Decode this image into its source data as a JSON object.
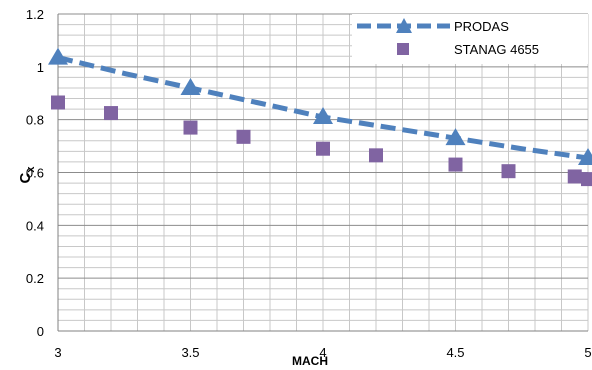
{
  "chart_data": {
    "type": "scatter",
    "title": "",
    "xlabel": "MACH",
    "ylabel": "C",
    "ylabel_subscript": "x",
    "xlim": [
      3,
      5
    ],
    "ylim": [
      0,
      1.2
    ],
    "xticks": [
      "3",
      "3.5",
      "4",
      "4.5",
      "5"
    ],
    "yticks": [
      "0",
      "0.2",
      "0.4",
      "0.6",
      "0.8",
      "1",
      "1.2"
    ],
    "grid": true,
    "legend_position": "top-right",
    "series": [
      {
        "name": "PRODAS",
        "style": "dashed-line-triangle-markers",
        "color": "#4F81BD",
        "x": [
          3,
          3.5,
          4,
          4.5,
          5
        ],
        "y": [
          1.035,
          0.92,
          0.81,
          0.73,
          0.655
        ],
        "line_x": [
          3,
          3.25,
          3.5,
          3.75,
          4,
          4.25,
          4.5,
          4.75,
          5
        ],
        "line_y": [
          1.035,
          0.975,
          0.92,
          0.865,
          0.81,
          0.77,
          0.73,
          0.69,
          0.655
        ]
      },
      {
        "name": "STANAG 4655",
        "style": "square-markers",
        "color": "#8064A2",
        "x": [
          3,
          3.2,
          3.5,
          3.7,
          4,
          4.2,
          4.5,
          4.7,
          4.95,
          5
        ],
        "y": [
          0.865,
          0.825,
          0.77,
          0.735,
          0.69,
          0.665,
          0.63,
          0.605,
          0.585,
          0.575
        ]
      }
    ]
  }
}
